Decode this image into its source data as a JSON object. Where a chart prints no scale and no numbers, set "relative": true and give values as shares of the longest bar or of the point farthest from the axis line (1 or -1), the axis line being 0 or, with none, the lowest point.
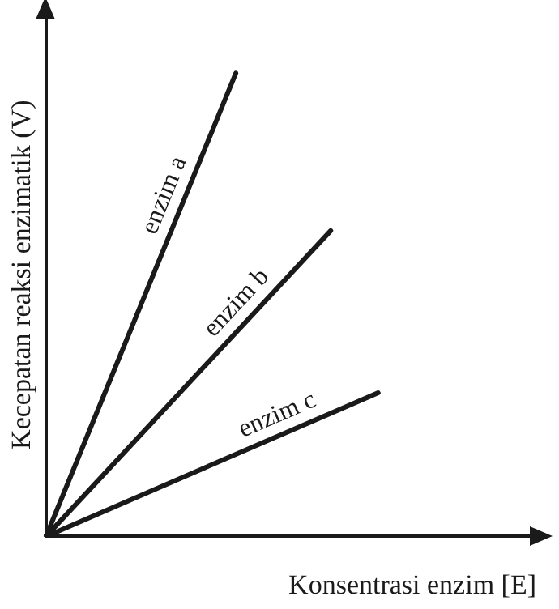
{
  "chart_data": {
    "type": "line",
    "relative": true,
    "xlabel": "Konsentrasi enzim [E]",
    "ylabel": "Kecepatan reaksi enzimatik (V)",
    "legend": false,
    "grid": false,
    "marker": "none",
    "line_style": "solid",
    "categories": [
      null,
      null,
      null,
      null,
      null,
      null,
      null,
      null,
      null,
      null,
      null,
      null,
      null,
      null,
      null,
      null,
      null,
      null,
      null,
      null,
      null,
      null,
      null,
      null,
      null,
      null,
      null,
      null,
      null,
      null,
      null,
      null
    ],
    "series": [
      {
        "name": "enzim a",
        "color": "#1a1a1a",
        "values": [
          0,
          null,
          null,
          null,
          null,
          null,
          null,
          null,
          null,
          null,
          null,
          null,
          1,
          null,
          null,
          null,
          null,
          null,
          null,
          null,
          null,
          null,
          null,
          null,
          null,
          null,
          null,
          null,
          null,
          null,
          null,
          null
        ]
      },
      {
        "name": "enzim b",
        "color": "#1a1a1a",
        "values": [
          0,
          null,
          null,
          null,
          null,
          null,
          null,
          null,
          null,
          null,
          null,
          null,
          null,
          null,
          null,
          null,
          null,
          null,
          0.66,
          null,
          null,
          null,
          null,
          null,
          null,
          null,
          null,
          null,
          null,
          null,
          null,
          null
        ]
      },
      {
        "name": "enzim c",
        "color": "#1a1a1a",
        "values": [
          0,
          null,
          null,
          null,
          null,
          null,
          null,
          null,
          null,
          null,
          null,
          null,
          null,
          null,
          null,
          null,
          null,
          null,
          null,
          null,
          null,
          0.31,
          null,
          null,
          null,
          null,
          null,
          null,
          null,
          null,
          null,
          null
        ]
      }
    ]
  }
}
